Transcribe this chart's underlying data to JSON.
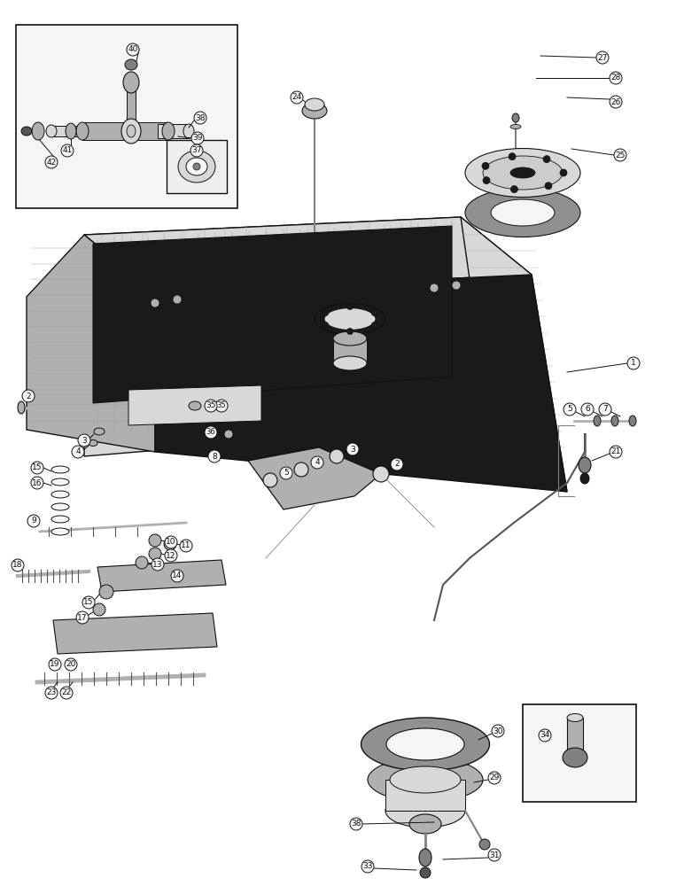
{
  "bg_color": "#ffffff",
  "lc": "#111111",
  "gray_light": "#d8d8d8",
  "gray_mid": "#b0b0b0",
  "gray_dark": "#808080",
  "gray_xdark": "#555555",
  "black": "#1a1a1a",
  "white": "#f5f5f5",
  "hatch_gray": "#aaaaaa"
}
